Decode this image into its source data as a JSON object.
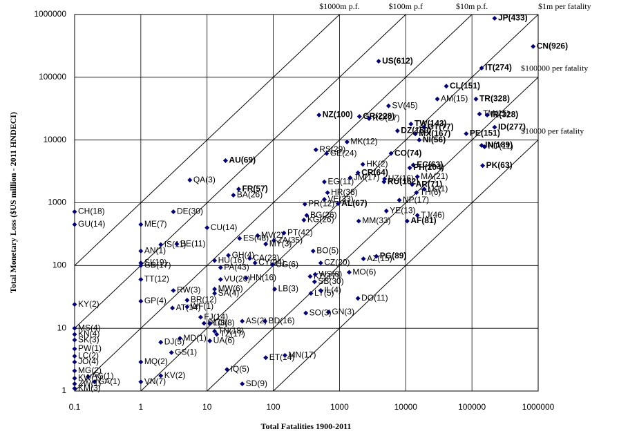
{
  "chart_data": {
    "type": "scatter",
    "xlabel": "Total Fatalities 1900-2011",
    "ylabel": "Total Monetary Loss ($US million - 2011 HNDECI)",
    "log_x": true,
    "log_y": true,
    "grid": true,
    "color": "#000080",
    "xlim": [
      0.1,
      1000000
    ],
    "ylim": [
      1,
      1000000
    ],
    "xticks": [
      0.1,
      1,
      10,
      100,
      1000,
      10000,
      100000,
      1000000
    ],
    "yticks": [
      1,
      10,
      100,
      1000,
      10000,
      100000,
      1000000
    ],
    "ratio_lines": [
      {
        "ratio": 1000,
        "label": "$1000m p.f."
      },
      {
        "ratio": 100,
        "label": "$100m p.f"
      },
      {
        "ratio": 10,
        "label": "$10m p.f."
      },
      {
        "ratio": 1,
        "label": "$1m per fatality"
      },
      {
        "ratio": 0.1,
        "label": "$100000 per fatality"
      },
      {
        "ratio": 0.01,
        "label": "$10000 per fatality"
      }
    ],
    "points": [
      {
        "label": "JP(433)",
        "x": 220000,
        "y": 870000,
        "bold": true
      },
      {
        "label": "CN(926)",
        "x": 840000,
        "y": 310000,
        "bold": true
      },
      {
        "label": "IT(274)",
        "x": 140000,
        "y": 140000,
        "bold": true
      },
      {
        "label": "US(612)",
        "x": 3900,
        "y": 180000,
        "bold": true
      },
      {
        "label": "CL(151)",
        "x": 41000,
        "y": 72000,
        "bold": true
      },
      {
        "label": "AM(15)",
        "x": 30000,
        "y": 45000,
        "bold": false
      },
      {
        "label": "TR(328)",
        "x": 115000,
        "y": 45000,
        "bold": true
      },
      {
        "label": "TM(15)",
        "x": 130000,
        "y": 26000,
        "bold": false
      },
      {
        "label": "IR(328)",
        "x": 170000,
        "y": 25000,
        "bold": true
      },
      {
        "label": "SV(45)",
        "x": 5500,
        "y": 35000,
        "bold": false
      },
      {
        "label": "GR(228)",
        "x": 2000,
        "y": 23700,
        "bold": true
      },
      {
        "label": "RO(27)",
        "x": 2800,
        "y": 22000,
        "bold": false
      },
      {
        "label": "NZ(100)",
        "x": 490,
        "y": 25000,
        "bold": true
      },
      {
        "label": "TW(143)",
        "x": 12000,
        "y": 18000,
        "bold": true
      },
      {
        "label": "GT(77)",
        "x": 18800,
        "y": 16000,
        "bold": true
      },
      {
        "label": "MX(167)",
        "x": 14000,
        "y": 12500,
        "bold": true
      },
      {
        "label": "PE(151)",
        "x": 82000,
        "y": 12600,
        "bold": true
      },
      {
        "label": "ID(277)",
        "x": 220000,
        "y": 16000,
        "bold": true
      },
      {
        "label": "IN(189)",
        "x": 140000,
        "y": 8200,
        "bold": true
      },
      {
        "label": "HT(11)",
        "x": 155000,
        "y": 7800,
        "bold": false
      },
      {
        "label": "DZ(150)",
        "x": 7500,
        "y": 14000,
        "bold": true
      },
      {
        "label": "NI(56)",
        "x": 16000,
        "y": 10000,
        "bold": true
      },
      {
        "label": "MK(12)",
        "x": 1300,
        "y": 9300,
        "bold": false
      },
      {
        "label": "RS(29)",
        "x": 440,
        "y": 7000,
        "bold": false
      },
      {
        "label": "GE(24)",
        "x": 640,
        "y": 6100,
        "bold": false
      },
      {
        "label": "AU(69)",
        "x": 19,
        "y": 4700,
        "bold": true
      },
      {
        "label": "QA(3)",
        "x": 5.5,
        "y": 2300,
        "bold": false
      },
      {
        "label": "CO(74)",
        "x": 6000,
        "y": 6100,
        "bold": true
      },
      {
        "label": "EC(63)",
        "x": 13000,
        "y": 4000,
        "bold": true
      },
      {
        "label": "PH(204)",
        "x": 11500,
        "y": 3600,
        "bold": true
      },
      {
        "label": "HK(2)",
        "x": 2250,
        "y": 4100,
        "bold": false
      },
      {
        "label": "MA(21)",
        "x": 15000,
        "y": 2600,
        "bold": false
      },
      {
        "label": "UZ(16)",
        "x": 4800,
        "y": 2400,
        "bold": false
      },
      {
        "label": "PK(63)",
        "x": 145000,
        "y": 3900,
        "bold": true
      },
      {
        "label": "CR(64)",
        "x": 1900,
        "y": 3000,
        "bold": true
      },
      {
        "label": "JM(17)",
        "x": 1450,
        "y": 2500,
        "bold": false
      },
      {
        "label": "EG(11)",
        "x": 590,
        "y": 2150,
        "bold": false
      },
      {
        "label": "RU(162)",
        "x": 4700,
        "y": 2160,
        "bold": true
      },
      {
        "label": "AR(71)",
        "x": 12500,
        "y": 1950,
        "bold": true
      },
      {
        "label": "TH(6)",
        "x": 14500,
        "y": 1450,
        "bold": false
      },
      {
        "label": "LK(1)",
        "x": 19000,
        "y": 1650,
        "bold": false
      },
      {
        "label": "NP(17)",
        "x": 8000,
        "y": 1100,
        "bold": false
      },
      {
        "label": "FR(57)",
        "x": 30,
        "y": 1650,
        "bold": true
      },
      {
        "label": "HR(38)",
        "x": 660,
        "y": 1450,
        "bold": false
      },
      {
        "label": "BA(26)",
        "x": 25,
        "y": 1320,
        "bold": false
      },
      {
        "label": "VE(33)",
        "x": 590,
        "y": 1130,
        "bold": false
      },
      {
        "label": "PR(12)",
        "x": 300,
        "y": 950,
        "bold": false
      },
      {
        "label": "AL(67)",
        "x": 950,
        "y": 970,
        "bold": true
      },
      {
        "label": "YE(13)",
        "x": 5100,
        "y": 740,
        "bold": false
      },
      {
        "label": "TJ(46)",
        "x": 15000,
        "y": 630,
        "bold": false
      },
      {
        "label": "AF(81)",
        "x": 10500,
        "y": 510,
        "bold": true
      },
      {
        "label": "DE(30)",
        "x": 3.1,
        "y": 720,
        "bold": false
      },
      {
        "label": "BG(26)",
        "x": 320,
        "y": 630,
        "bold": false
      },
      {
        "label": "KG(26)",
        "x": 290,
        "y": 530,
        "bold": false
      },
      {
        "label": "MM(33)",
        "x": 1950,
        "y": 510,
        "bold": false
      },
      {
        "label": "CH(18)",
        "x": 0.1,
        "y": 720,
        "bold": false
      },
      {
        "label": "GU(14)",
        "x": 0.1,
        "y": 450,
        "bold": false
      },
      {
        "label": "ME(7)",
        "x": 1,
        "y": 450,
        "bold": false
      },
      {
        "label": "CU(14)",
        "x": 10,
        "y": 400,
        "bold": false
      },
      {
        "label": "MV(2)",
        "x": 58,
        "y": 300,
        "bold": false
      },
      {
        "label": "ES(48)",
        "x": 31,
        "y": 270,
        "bold": false
      },
      {
        "label": "PT(42)",
        "x": 145,
        "y": 330,
        "bold": false
      },
      {
        "label": "ZA(35)",
        "x": 102,
        "y": 250,
        "bold": false
      },
      {
        "label": "MY(3)",
        "x": 77,
        "y": 220,
        "bold": false
      },
      {
        "label": "AN(1)",
        "x": 1,
        "y": 170,
        "bold": false
      },
      {
        "label": "IS(11)",
        "x": 2,
        "y": 215,
        "bold": false
      },
      {
        "label": "BE(11)",
        "x": 3.5,
        "y": 220,
        "bold": false
      },
      {
        "label": "GH(4)",
        "x": 21,
        "y": 145,
        "bold": false
      },
      {
        "label": "HU(16)",
        "x": 13,
        "y": 120,
        "bold": false
      },
      {
        "label": "CA(23)",
        "x": 44,
        "y": 130,
        "bold": false
      },
      {
        "label": "CY(24)",
        "x": 53,
        "y": 110,
        "bold": false
      },
      {
        "label": "BO(5)",
        "x": 400,
        "y": 170,
        "bold": false
      },
      {
        "label": "CZ(20)",
        "x": 520,
        "y": 110,
        "bold": false
      },
      {
        "label": "SI(19)",
        "x": 1,
        "y": 110,
        "bold": false
      },
      {
        "label": "GB(17)",
        "x": 1,
        "y": 100,
        "bold": false
      },
      {
        "label": "TT(12)",
        "x": 1,
        "y": 60,
        "bold": false
      },
      {
        "label": "PA(43)",
        "x": 16,
        "y": 93,
        "bold": false
      },
      {
        "label": "UG(6)",
        "x": 97,
        "y": 103,
        "bold": false
      },
      {
        "label": "AZ(15)",
        "x": 2300,
        "y": 128,
        "bold": false
      },
      {
        "label": "PG(89)",
        "x": 3600,
        "y": 140,
        "bold": true
      },
      {
        "label": "KZ(17)",
        "x": 360,
        "y": 67,
        "bold": false
      },
      {
        "label": "MO(6)",
        "x": 1400,
        "y": 78,
        "bold": false
      },
      {
        "label": "WS(8)",
        "x": 430,
        "y": 72,
        "bold": false
      },
      {
        "label": "VU(26)",
        "x": 16,
        "y": 60,
        "bold": false
      },
      {
        "label": "HN(16)",
        "x": 39,
        "y": 63,
        "bold": false
      },
      {
        "label": "RW(3)",
        "x": 3.1,
        "y": 40,
        "bold": false
      },
      {
        "label": "MW(6)",
        "x": 13,
        "y": 42,
        "bold": false
      },
      {
        "label": "SB(30)",
        "x": 420,
        "y": 55,
        "bold": false
      },
      {
        "label": "SA(4)",
        "x": 13,
        "y": 36,
        "bold": false
      },
      {
        "label": "LB(3)",
        "x": 105,
        "y": 42,
        "bold": false
      },
      {
        "label": "LY(5)",
        "x": 370,
        "y": 36,
        "bold": false
      },
      {
        "label": "IL(4)",
        "x": 520,
        "y": 40,
        "bold": false
      },
      {
        "label": "BR(12)",
        "x": 5,
        "y": 28,
        "bold": false
      },
      {
        "label": "GP(4)",
        "x": 1,
        "y": 27,
        "bold": false
      },
      {
        "label": "KY(2)",
        "x": 0.1,
        "y": 24,
        "bold": false
      },
      {
        "label": "DO(11)",
        "x": 1900,
        "y": 30,
        "bold": false
      },
      {
        "label": "AT(14)",
        "x": 3,
        "y": 21,
        "bold": false
      },
      {
        "label": "WF(1)",
        "x": 5,
        "y": 22,
        "bold": false
      },
      {
        "label": "FJ(14)",
        "x": 8,
        "y": 15,
        "bold": false
      },
      {
        "label": "GN(3)",
        "x": 680,
        "y": 18,
        "bold": false
      },
      {
        "label": "SO(3)",
        "x": 310,
        "y": 17.5,
        "bold": false
      },
      {
        "label": "AS(2)",
        "x": 34,
        "y": 13,
        "bold": false
      },
      {
        "label": "BD(16)",
        "x": 75,
        "y": 13,
        "bold": false
      },
      {
        "label": "PL(8)",
        "x": 9,
        "y": 12,
        "bold": false
      },
      {
        "label": "TO(8)",
        "x": 11,
        "y": 12,
        "bold": false
      },
      {
        "label": "MS(4)",
        "x": 0.1,
        "y": 10,
        "bold": false
      },
      {
        "label": "KN(4)",
        "x": 0.1,
        "y": 8,
        "bold": false
      },
      {
        "label": "SK(3)",
        "x": 0.1,
        "y": 6.5,
        "bold": false
      },
      {
        "label": "TN(18)",
        "x": 13,
        "y": 9,
        "bold": false
      },
      {
        "label": "TZ(17)",
        "x": 14,
        "y": 8,
        "bold": false
      },
      {
        "label": "MD(1)",
        "x": 3.9,
        "y": 6.9,
        "bold": false
      },
      {
        "label": "DJ(5)",
        "x": 2,
        "y": 6,
        "bold": false
      },
      {
        "label": "UA(6)",
        "x": 11,
        "y": 6.3,
        "bold": false
      },
      {
        "label": "PW(1)",
        "x": 0.1,
        "y": 4.7,
        "bold": false
      },
      {
        "label": "GS(1)",
        "x": 2.9,
        "y": 4.1,
        "bold": false
      },
      {
        "label": "LC(2)",
        "x": 0.1,
        "y": 3.6,
        "bold": false
      },
      {
        "label": "JO(4)",
        "x": 0.1,
        "y": 2.9,
        "bold": false
      },
      {
        "label": "MQ(2)",
        "x": 1,
        "y": 2.9,
        "bold": false
      },
      {
        "label": "MG(2)",
        "x": 0.1,
        "y": 2.1,
        "bold": false
      },
      {
        "label": "AG(1)",
        "x": 0.16,
        "y": 1.7,
        "bold": false
      },
      {
        "label": "KV(2)",
        "x": 2,
        "y": 1.75,
        "bold": false
      },
      {
        "label": "IQ(5)",
        "x": 20,
        "y": 2.2,
        "bold": false
      },
      {
        "label": "KW(1)",
        "x": 0.1,
        "y": 1.6,
        "bold": false
      },
      {
        "label": "GA(1)",
        "x": 0.2,
        "y": 1.4,
        "bold": false
      },
      {
        "label": "VN(7)",
        "x": 1,
        "y": 1.4,
        "bold": false
      },
      {
        "label": "ET(14)",
        "x": 77,
        "y": 3.4,
        "bold": false
      },
      {
        "label": "MN(17)",
        "x": 150,
        "y": 3.7,
        "bold": false
      },
      {
        "label": "SD(9)",
        "x": 34,
        "y": 1.3,
        "bold": false
      },
      {
        "label": "ZW(1)",
        "x": 0.1,
        "y": 1.3,
        "bold": false
      },
      {
        "label": "KM(3)",
        "x": 0.1,
        "y": 1.1,
        "bold": false
      }
    ]
  }
}
